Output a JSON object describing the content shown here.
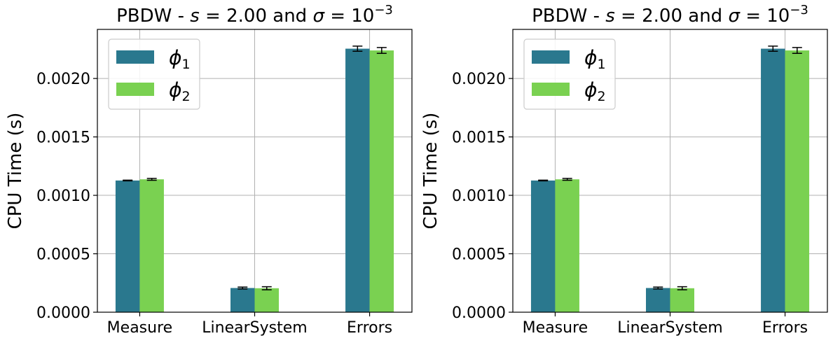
{
  "colors": {
    "phi1": "#2a788e",
    "phi2": "#7ad151"
  },
  "chart_data": [
    {
      "type": "bar",
      "title_pre": "PBDW - ",
      "title_s": "s",
      "title_eq1": " = 2.00 and ",
      "title_sigma": "σ",
      "title_eq2": " = 10",
      "title_exp": "−3",
      "xlabel": "",
      "ylabel": "CPU Time (s)",
      "ylim": [
        0,
        0.00242
      ],
      "yticks": [
        "0.0000",
        "0.0005",
        "0.0010",
        "0.0015",
        "0.0020"
      ],
      "ytick_values": [
        0,
        0.0005,
        0.001,
        0.0015,
        0.002
      ],
      "grid": true,
      "legend_position": "upper-left",
      "categories": [
        "Measure",
        "LinearSystem",
        "Errors"
      ],
      "series": [
        {
          "name": "ϕ",
          "sub": "1",
          "values": [
            0.001127,
            0.000207,
            0.002255
          ],
          "errors": [
            3e-06,
            8e-06,
            2.2e-05
          ]
        },
        {
          "name": "ϕ",
          "sub": "2",
          "values": [
            0.001137,
            0.000205,
            0.00224
          ],
          "errors": [
            8e-06,
            1.3e-05,
            2.5e-05
          ]
        }
      ]
    },
    {
      "type": "bar",
      "title_pre": "PBDW - ",
      "title_s": "s",
      "title_eq1": " = 2.00 and ",
      "title_sigma": "σ",
      "title_eq2": " = 10",
      "title_exp": "−3",
      "xlabel": "",
      "ylabel": "CPU Time (s)",
      "ylim": [
        0,
        0.00242
      ],
      "yticks": [
        "0.0000",
        "0.0005",
        "0.0010",
        "0.0015",
        "0.0020"
      ],
      "ytick_values": [
        0,
        0.0005,
        0.001,
        0.0015,
        0.002
      ],
      "grid": true,
      "legend_position": "upper-left",
      "categories": [
        "Measure",
        "LinearSystem",
        "Errors"
      ],
      "series": [
        {
          "name": "ϕ",
          "sub": "1",
          "values": [
            0.001127,
            0.000207,
            0.002255
          ],
          "errors": [
            3e-06,
            8e-06,
            2.2e-05
          ]
        },
        {
          "name": "ϕ",
          "sub": "2",
          "values": [
            0.001137,
            0.000205,
            0.00224
          ],
          "errors": [
            8e-06,
            1.3e-05,
            2.5e-05
          ]
        }
      ]
    }
  ]
}
